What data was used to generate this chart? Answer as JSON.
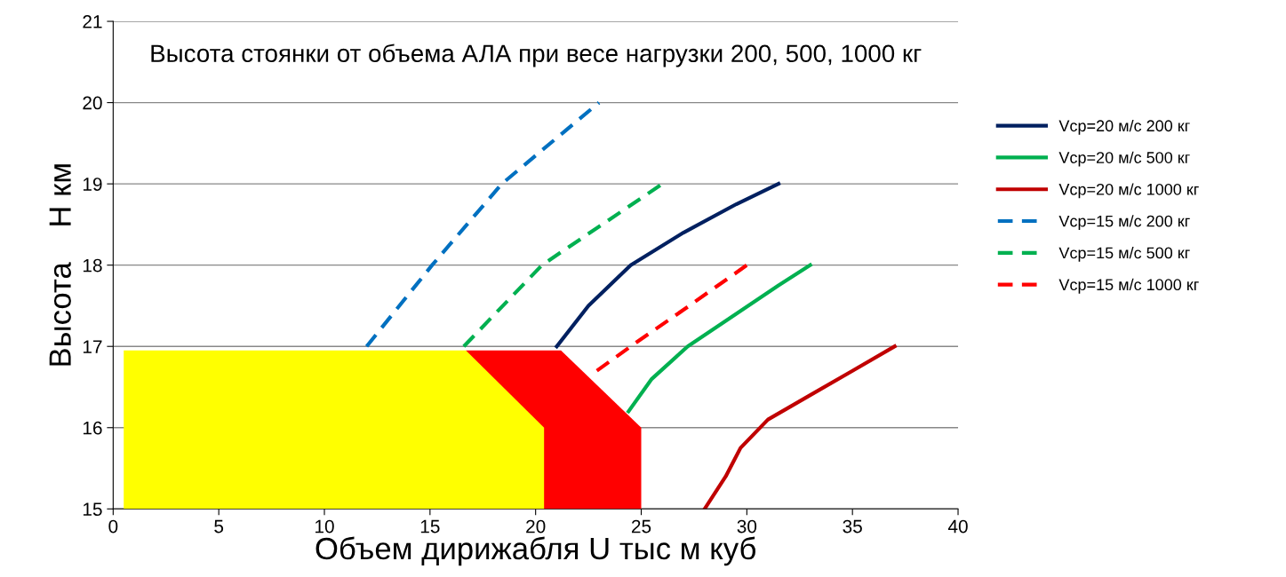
{
  "chart_data": {
    "type": "line",
    "title": "Высота стоянки от объема АЛА при весе нагрузки 200, 500, 1000 кг",
    "xlabel": "Объем дирижабля U тыс м куб",
    "ylabel": "Высота    H км",
    "xlim": [
      0,
      40
    ],
    "xticks": [
      0,
      5,
      10,
      15,
      20,
      25,
      30,
      35,
      40
    ],
    "ylim": [
      15,
      21
    ],
    "yticks": [
      15,
      16,
      17,
      18,
      19,
      20,
      21
    ],
    "grid": "y",
    "legend": "right",
    "marker": "none",
    "series": [
      {
        "type": "area",
        "color": "#ff0000",
        "x": [
          16.7,
          21.2,
          25.0
        ],
        "values": [
          16.95,
          16.95,
          16.0
        ]
      },
      {
        "type": "area",
        "color": "#ffff00",
        "x": [
          0.5,
          16.7,
          20.4
        ],
        "values": [
          16.95,
          16.95,
          16.0
        ]
      },
      {
        "name": "Vcp=20 м/с 200 кг",
        "color": "#002060",
        "line_style": "solid",
        "x": [
          21.0,
          22.5,
          24.5,
          27.0,
          29.5,
          31.5
        ],
        "values": [
          17.0,
          17.5,
          18.0,
          18.4,
          18.75,
          19.0
        ]
      },
      {
        "name": "Vcp=20 м/с 500 кг",
        "color": "#00b050",
        "line_style": "solid",
        "x": [
          24.4,
          25.5,
          27.2,
          29.5,
          31.5,
          33.0
        ],
        "values": [
          16.2,
          16.6,
          17.0,
          17.4,
          17.75,
          18.0
        ]
      },
      {
        "name": "Vcp=20 м/с 1000 кг",
        "color": "#c00000",
        "line_style": "solid",
        "x": [
          28.0,
          29.0,
          29.7,
          31.0,
          33.0,
          35.0,
          37.0
        ],
        "values": [
          15.0,
          15.4,
          15.75,
          16.1,
          16.4,
          16.7,
          17.0
        ]
      },
      {
        "name": "Vcp=15 м/с 200 кг",
        "color": "#0070c0",
        "line_style": "dashed",
        "x": [
          12.0,
          15.1,
          18.4,
          23.0
        ],
        "values": [
          17.0,
          18.0,
          19.0,
          20.0
        ]
      },
      {
        "name": "Vcp=15 м/с 500 кг",
        "color": "#00b050",
        "line_style": "dashed",
        "x": [
          16.6,
          20.3,
          26.0
        ],
        "values": [
          17.0,
          18.0,
          19.0
        ]
      },
      {
        "name": "Vcp=15 м/с 1000 кг",
        "color": "#ff0000",
        "line_style": "dashed",
        "x": [
          22.9,
          24.5,
          27.0,
          30.0
        ],
        "values": [
          16.7,
          17.0,
          17.45,
          18.0
        ]
      }
    ]
  }
}
